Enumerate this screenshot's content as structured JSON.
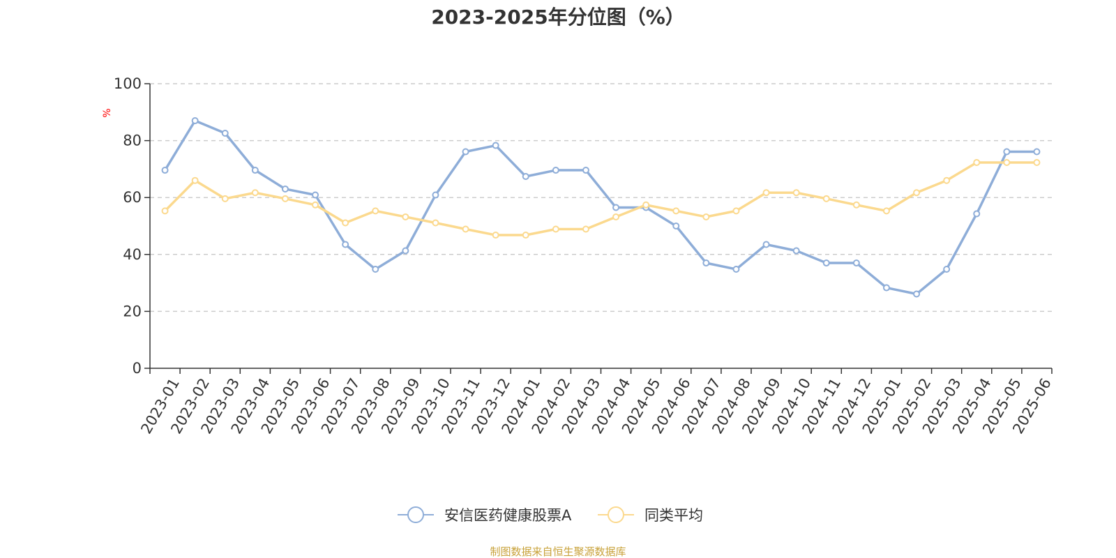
{
  "chart_data": {
    "type": "line",
    "title": "2023-2025年分位图（%）",
    "ylabel": "%",
    "xlabel": "",
    "ylim": [
      0,
      100
    ],
    "yticks": [
      0,
      20,
      40,
      60,
      80,
      100
    ],
    "grid": true,
    "legend_position": "bottom",
    "categories": [
      "2023-01",
      "2023-02",
      "2023-03",
      "2023-04",
      "2023-05",
      "2023-06",
      "2023-07",
      "2023-08",
      "2023-09",
      "2023-10",
      "2023-11",
      "2023-12",
      "2024-01",
      "2024-02",
      "2024-03",
      "2024-04",
      "2024-05",
      "2024-06",
      "2024-07",
      "2024-08",
      "2024-09",
      "2024-10",
      "2024-11",
      "2024-12",
      "2025-01",
      "2025-02",
      "2025-03",
      "2025-04",
      "2025-05",
      "2025-06"
    ],
    "series": [
      {
        "name": "安信医药健康股票A",
        "color": "#8eadd8",
        "values": [
          69.6,
          87.0,
          82.6,
          69.6,
          63.0,
          60.9,
          43.5,
          34.8,
          41.3,
          60.9,
          76.1,
          78.3,
          67.4,
          69.6,
          69.6,
          56.5,
          56.5,
          50.0,
          37.0,
          34.8,
          43.5,
          41.3,
          37.0,
          37.0,
          28.3,
          26.1,
          34.8,
          54.3,
          76.1,
          76.1
        ]
      },
      {
        "name": "同类平均",
        "color": "#fbd98e",
        "values": [
          55.3,
          66.0,
          59.6,
          61.7,
          59.6,
          57.4,
          51.1,
          55.3,
          53.2,
          51.1,
          48.9,
          46.8,
          46.8,
          48.9,
          48.9,
          53.2,
          57.4,
          55.3,
          53.2,
          55.3,
          61.7,
          61.7,
          59.6,
          57.4,
          55.3,
          61.7,
          66.0,
          72.3,
          72.3,
          72.3
        ]
      }
    ]
  },
  "source_text": "制图数据来自恒生聚源数据库",
  "colors": {
    "source_text": "#c8a23a",
    "unit_label": "#ff0000",
    "axis": "#333333",
    "grid": "#cccccc"
  }
}
